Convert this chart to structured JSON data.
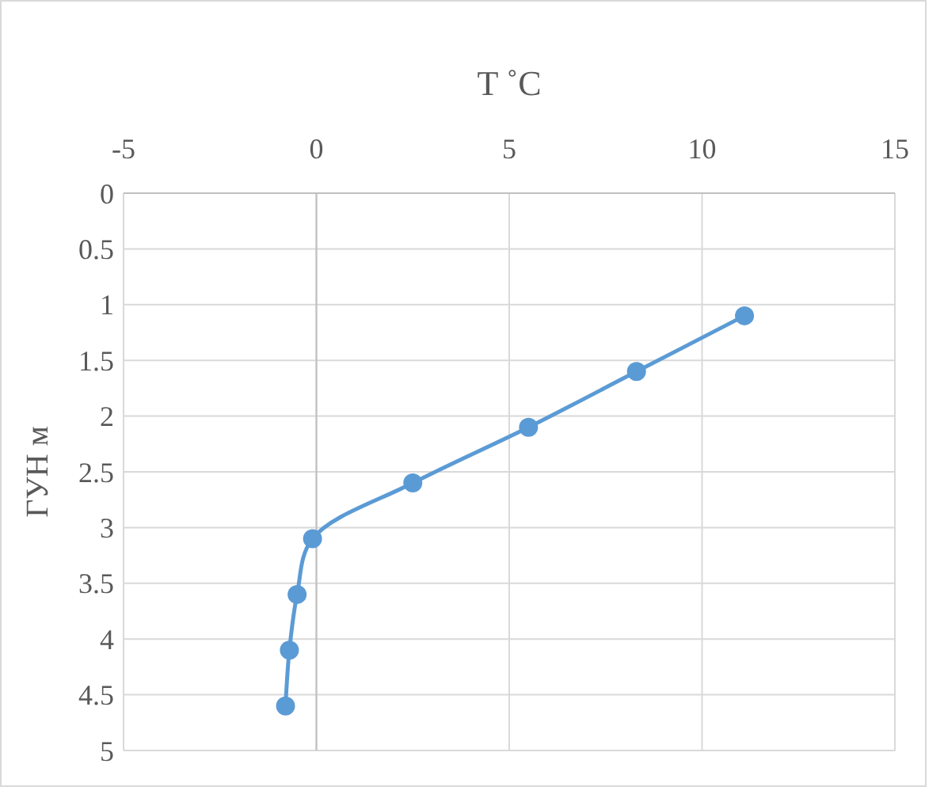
{
  "chart_data": {
    "type": "line",
    "xlabel": "T ˚C",
    "ylabel": "ГУН м",
    "x": [
      11.1,
      8.3,
      5.5,
      2.5,
      -0.1,
      -0.5,
      -0.7,
      -0.8
    ],
    "series": [
      {
        "color": "#5b9bd5",
        "values": [
          1.1,
          1.6,
          2.1,
          2.6,
          3.1,
          3.6,
          4.1,
          4.6
        ]
      }
    ],
    "xlim": [
      -5,
      15
    ],
    "xticks": [
      -5,
      0,
      5,
      10,
      15
    ],
    "ylim": [
      5,
      0
    ],
    "yticks": [
      0,
      0.5,
      1,
      1.5,
      2,
      2.5,
      3,
      3.5,
      4,
      4.5,
      5
    ],
    "grid": true,
    "marker": "circle",
    "line_style": "solid"
  }
}
